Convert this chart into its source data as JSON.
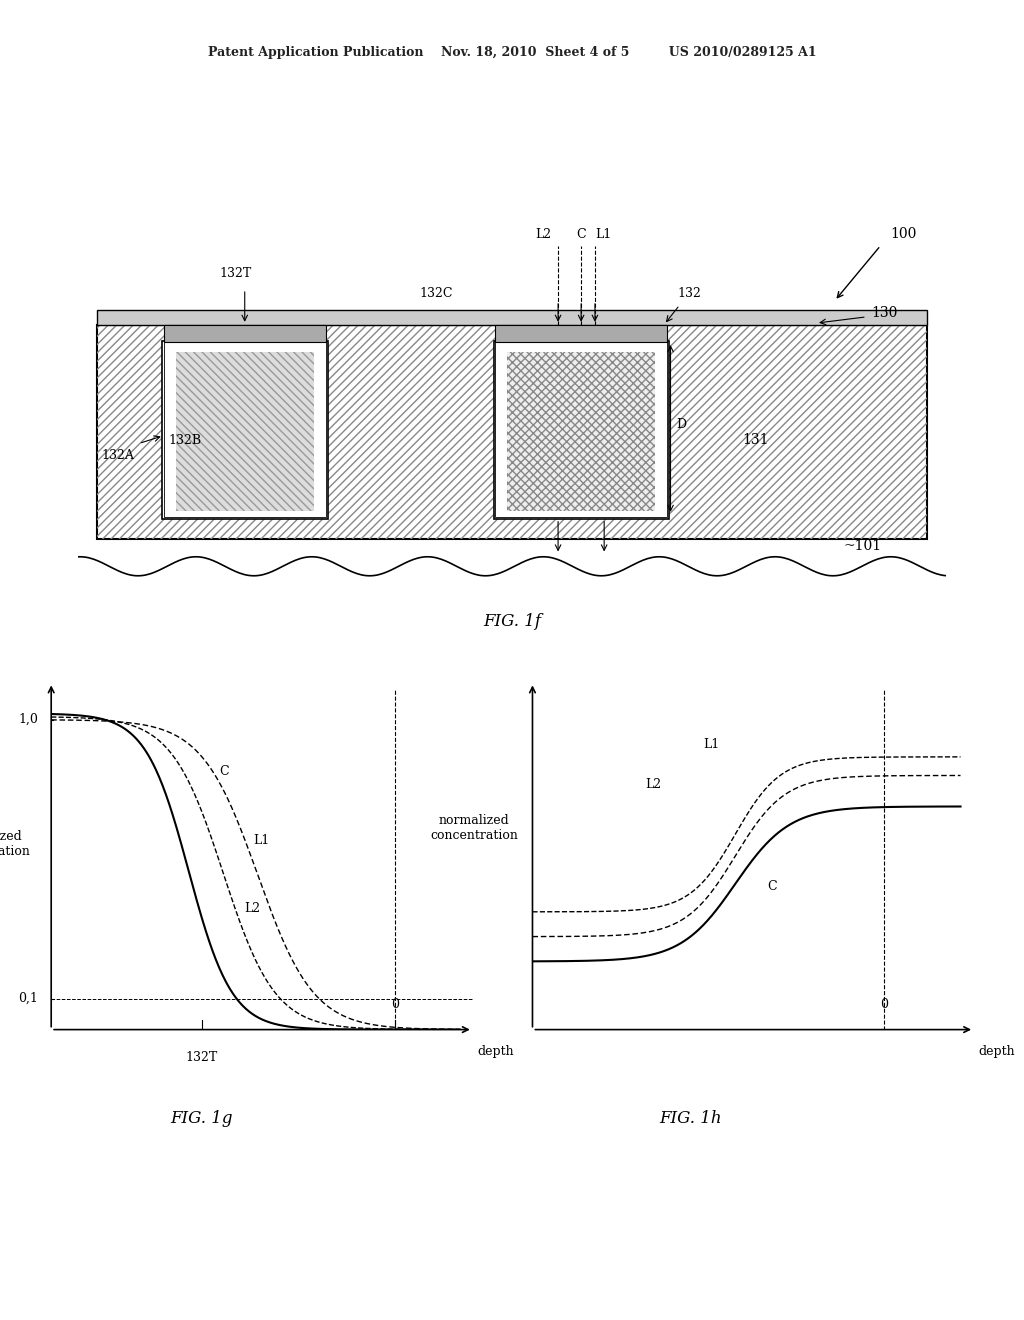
{
  "bg_color": "#ffffff",
  "header_text": "Patent Application Publication    Nov. 18, 2010  Sheet 4 of 5         US 2010/0289125 A1",
  "fig_label_1f": "FIG. 1f",
  "fig_label_1g": "FIG. 1g",
  "fig_label_1h": "FIG. 1h",
  "label_100": "100",
  "label_101": "~101",
  "label_130": "130",
  "label_131": "131",
  "label_132": "132",
  "label_132A": "132A",
  "label_132B": "132B",
  "label_132C": "132C",
  "label_132T": "132T",
  "label_L1": "L1",
  "label_L2": "L2",
  "label_C": "C",
  "label_D": "D",
  "ylabel_g": "normalized\nconcentration",
  "ylabel_h": "normalized\nconcentration",
  "xlabel_g": "depth",
  "xlabel_h": "depth",
  "tick_1_0": "1,0",
  "tick_0_1": "0,1",
  "tick_0": "0",
  "tick_132T": "132T",
  "hatch_pattern": "////",
  "line_color": "#000000",
  "dashed_color": "#555555"
}
